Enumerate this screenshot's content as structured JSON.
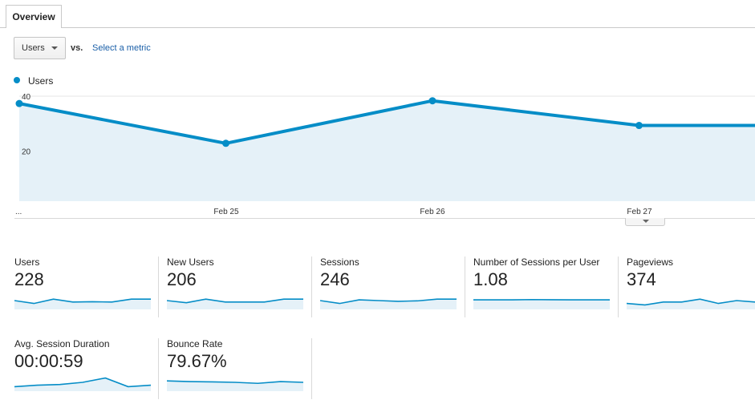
{
  "tabs": [
    {
      "label": "Overview"
    }
  ],
  "metric_selector": {
    "value": "Users",
    "vs_label": "vs.",
    "select_metric_link": "Select a metric"
  },
  "legend": {
    "series_name": "Users",
    "color": "#058dc7"
  },
  "chart_data": {
    "type": "area",
    "x_tick_labels": [
      "...",
      "Feb 25",
      "Feb 26",
      "Feb 27"
    ],
    "y_tick_labels": [
      "40",
      "20"
    ],
    "ylim": [
      0,
      40
    ],
    "grid": true,
    "series": [
      {
        "name": "Users",
        "points": [
          38.5,
          24,
          39.5,
          30.5,
          30.5
        ]
      }
    ]
  },
  "scorecards": [
    {
      "label": "Users",
      "value": "228",
      "spark": [
        5,
        3,
        6,
        4,
        4.2,
        4,
        6,
        6
      ]
    },
    {
      "label": "New Users",
      "value": "206",
      "spark": [
        5,
        3.5,
        6,
        4,
        4,
        4,
        6,
        6
      ]
    },
    {
      "label": "Sessions",
      "value": "246",
      "spark": [
        5,
        3,
        5.5,
        5,
        4.5,
        4.8,
        6,
        6
      ]
    },
    {
      "label": "Number of Sessions per User",
      "value": "1.08",
      "spark": [
        5.5,
        5.5,
        5.5,
        5.7,
        5.6,
        5.5,
        5.5,
        5.5
      ]
    },
    {
      "label": "Pageviews",
      "value": "374",
      "spark": [
        3,
        2,
        4,
        4,
        6,
        3,
        5,
        4
      ]
    },
    {
      "label": "Avg. Session Duration",
      "value": "00:00:59",
      "spark": [
        2,
        3,
        3.5,
        5,
        8,
        2,
        3
      ]
    },
    {
      "label": "Bounce Rate",
      "value": "79.67%",
      "spark": [
        6,
        5.5,
        5.3,
        5,
        4.3,
        5.5,
        5
      ]
    }
  ]
}
